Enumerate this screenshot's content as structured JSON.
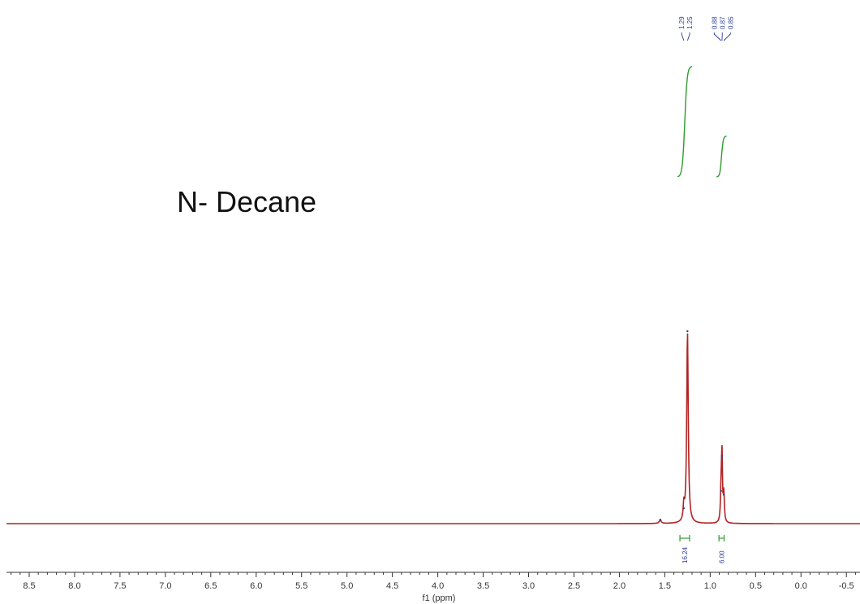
{
  "chart_data": {
    "type": "line",
    "title": "N- Decane",
    "xlabel": "f1 (ppm)",
    "xlim": [
      8.75,
      -0.65
    ],
    "x_reversed": true,
    "x_ticks": [
      8.5,
      8.0,
      7.5,
      7.0,
      6.5,
      6.0,
      5.5,
      5.0,
      4.5,
      4.0,
      3.5,
      3.0,
      2.5,
      2.0,
      1.5,
      1.0,
      0.5,
      0.0,
      -0.5
    ],
    "x_tick_labels": [
      "8.5",
      "8.0",
      "7.5",
      "7.0",
      "6.5",
      "6.0",
      "5.5",
      "5.0",
      "4.5",
      "4.0",
      "3.5",
      "3.0",
      "2.5",
      "2.0",
      "1.5",
      "1.0",
      "0.5",
      "0.0",
      "-0.5"
    ],
    "ylim": [
      0,
      1.0
    ],
    "series": [
      {
        "peaks": [
          {
            "ppm": 1.55,
            "height": 0.02,
            "width": 0.012
          },
          {
            "ppm": 1.29,
            "height": 0.08,
            "width": 0.008
          },
          {
            "ppm": 1.25,
            "height": 1.0,
            "width": 0.01
          },
          {
            "ppm": 0.88,
            "height": 0.17,
            "width": 0.007
          },
          {
            "ppm": 0.87,
            "height": 0.35,
            "width": 0.006
          },
          {
            "ppm": 0.85,
            "height": 0.15,
            "width": 0.007
          }
        ]
      }
    ],
    "peak_labels": [
      {
        "group": [
          1.29,
          1.25
        ],
        "labels": [
          "1.29",
          "1.25"
        ]
      },
      {
        "group": [
          0.88,
          0.87,
          0.85
        ],
        "labels": [
          "0.88",
          "0.87",
          "0.85"
        ]
      }
    ],
    "integrals": [
      {
        "from": 1.36,
        "to": 1.2,
        "value": "16.24"
      },
      {
        "from": 0.93,
        "to": 0.82,
        "value": "6.00"
      }
    ],
    "colors": {
      "spectrum": "#b22222",
      "peak_label": "#2b3a99",
      "integral": "#2e9b2e",
      "axis": "#333333"
    }
  }
}
